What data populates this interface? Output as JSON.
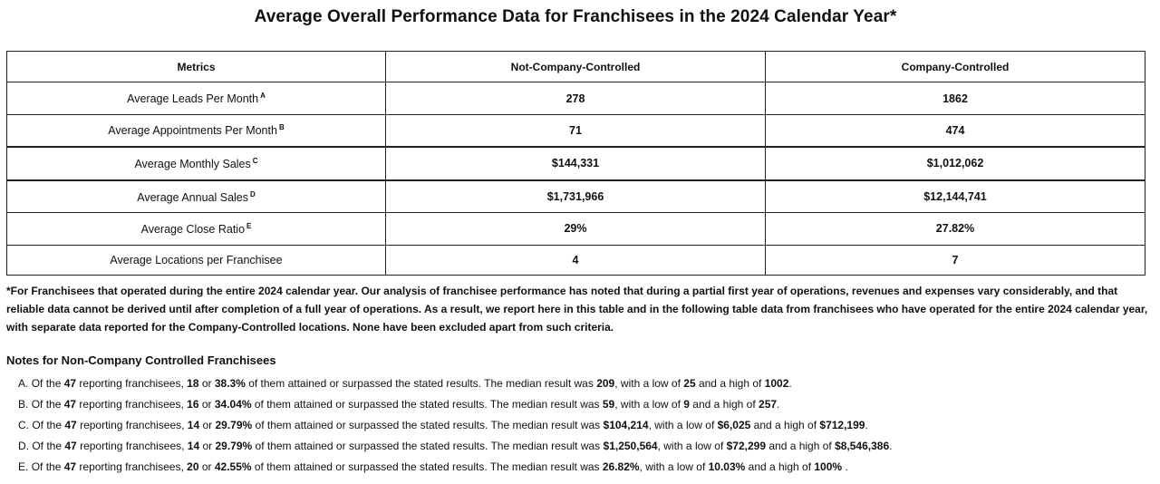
{
  "title": "Average Overall Performance Data for Franchisees in the 2024 Calendar Year*",
  "table": {
    "headers": [
      "Metrics",
      "Not-Company-Controlled",
      "Company-Controlled"
    ],
    "rows": [
      {
        "metric": "Average Leads Per Month",
        "sup": "A",
        "ncc": "278",
        "cc": "1862"
      },
      {
        "metric": "Average Appointments Per Month",
        "sup": "B",
        "ncc": "71",
        "cc": "474"
      },
      {
        "metric": "Average Monthly Sales",
        "sup": "C",
        "ncc": "$144,331",
        "cc": "$1,012,062"
      },
      {
        "metric": "Average Annual Sales",
        "sup": "D",
        "ncc": "$1,731,966",
        "cc": "$12,144,741"
      },
      {
        "metric": "Average Close Ratio",
        "sup": "E",
        "ncc": "29%",
        "cc": "27.82%"
      },
      {
        "metric": "Average Locations per Franchisee",
        "sup": "",
        "ncc": "4",
        "cc": "7"
      }
    ]
  },
  "footnote": "*For Franchisees that operated during the entire 2024 calendar year. Our analysis of franchisee performance has noted that during a partial first year of operations, revenues and expenses vary considerably, and that reliable data cannot be derived until after completion of a full year of operations. As a result, we report here in this table and in the following table data from franchisees who have operated for the entire 2024 calendar year, with separate data reported for the Company-Controlled locations. None have been excluded apart from such criteria.",
  "notes": {
    "heading": "Notes for Non-Company Controlled Franchisees",
    "text": {
      "t1": "Of the ",
      "t2": " reporting franchisees, ",
      "t3": " or ",
      "t4": " of them attained or surpassed the stated results. The median result was ",
      "t5": ", with a low of ",
      "t6": " and a high of "
    },
    "items": [
      {
        "letter": "A.",
        "total": "47",
        "count": "18",
        "pct": "38.3%",
        "median": "209",
        "low": "25",
        "high": "1002",
        "end": "."
      },
      {
        "letter": "B.",
        "total": "47",
        "count": "16",
        "pct": "34.04%",
        "median": "59",
        "low": "9",
        "high": "257",
        "end": "."
      },
      {
        "letter": "C.",
        "total": "47",
        "count": "14",
        "pct": "29.79%",
        "median": "$104,214",
        "low": "$6,025",
        "high": "$712,199",
        "end": "."
      },
      {
        "letter": "D.",
        "total": "47",
        "count": "14",
        "pct": "29.79%",
        "median": "$1,250,564",
        "low": "$72,299",
        "high": "$8,546,386",
        "end": "."
      },
      {
        "letter": "E.",
        "total": "47",
        "count": "20",
        "pct": "42.55%",
        "median": "26.82%",
        "low": "10.03%",
        "high": "100%",
        "end": " ."
      }
    ]
  }
}
